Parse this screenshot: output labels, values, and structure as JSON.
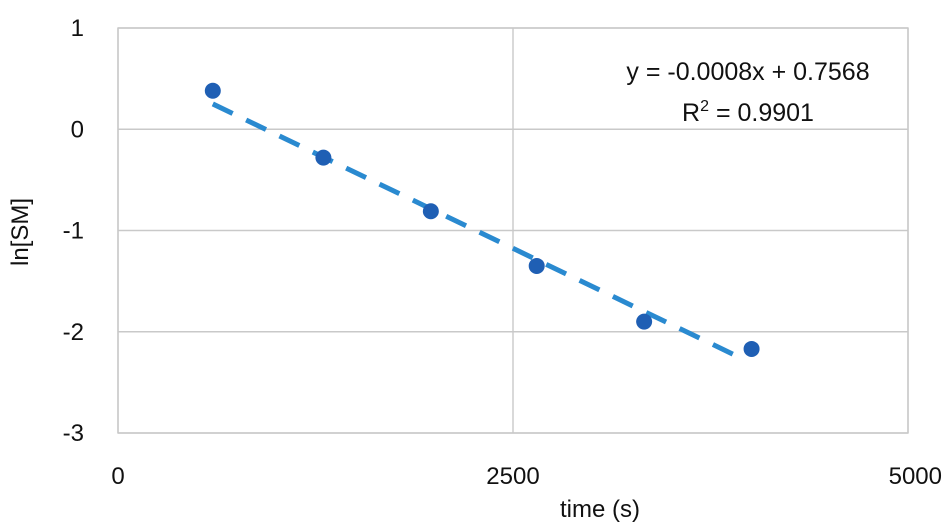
{
  "chart_data": {
    "type": "scatter",
    "xlabel": "time (s)",
    "ylabel": "ln[SM]",
    "xlim": [
      0,
      5000
    ],
    "ylim": [
      -3,
      1
    ],
    "x_ticks": [
      0,
      2500,
      5000
    ],
    "y_ticks": [
      1,
      0,
      -1,
      -2,
      -3
    ],
    "grid": true,
    "series": [
      {
        "points": [
          {
            "x": 600,
            "y": 0.38
          },
          {
            "x": 1300,
            "y": -0.28
          },
          {
            "x": 1980,
            "y": -0.81
          },
          {
            "x": 2650,
            "y": -1.35
          },
          {
            "x": 3330,
            "y": -1.9
          },
          {
            "x": 4010,
            "y": -2.17
          }
        ],
        "color": "#1f5fb4"
      }
    ],
    "trendline": {
      "type": "linear",
      "x_range": [
        600,
        3930
      ],
      "y_range": [
        0.25,
        -2.25
      ],
      "style": "dashed",
      "color": "#2a8ad0",
      "equation": "y = -0.0008x + 0.7568",
      "r_squared_label": "R",
      "r_squared_exp": "2",
      "r_squared_value": " = 0.9901"
    }
  }
}
